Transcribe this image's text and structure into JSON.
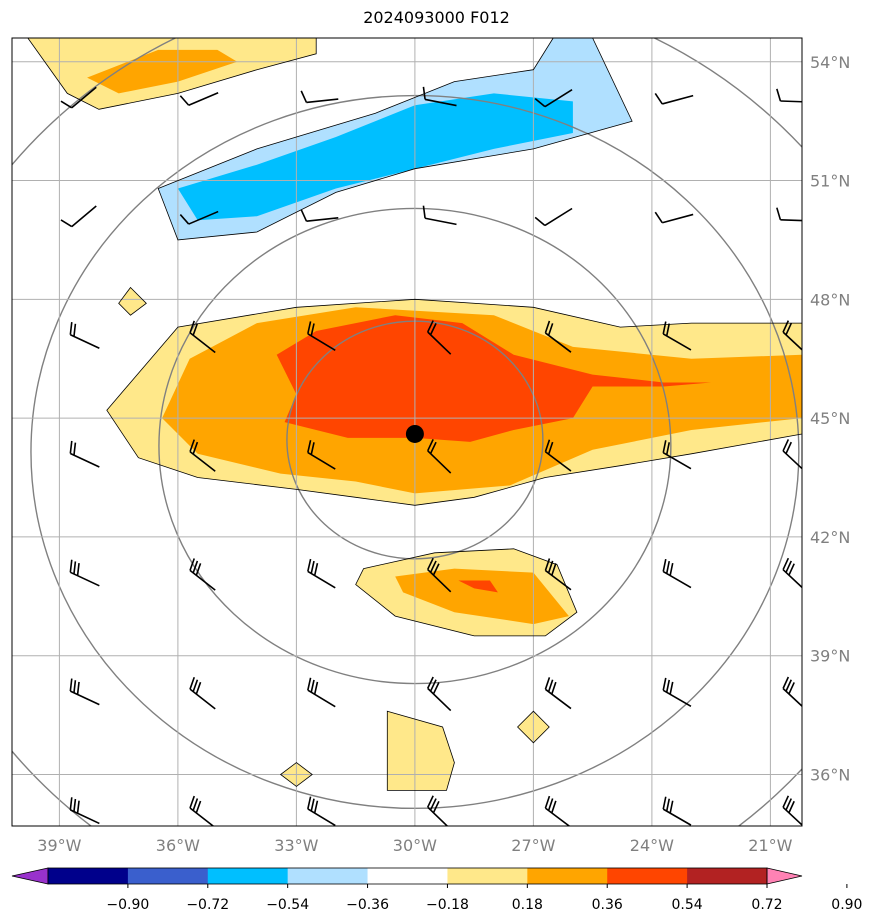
{
  "chart_data": {
    "type": "heatmap",
    "title": "2024093000 F012",
    "map": {
      "lon_range": [
        -40.2,
        -20.2
      ],
      "lat_range": [
        34.7,
        54.6
      ],
      "lon_ticks": [
        -39,
        -36,
        -33,
        -30,
        -27,
        -24,
        -21
      ],
      "lon_tick_labels": [
        "39°W",
        "36°W",
        "33°W",
        "30°W",
        "27°W",
        "24°W",
        "21°W"
      ],
      "lat_ticks": [
        36,
        39,
        42,
        45,
        48,
        51,
        54
      ],
      "lat_tick_labels": [
        "36°N",
        "39°N",
        "42°N",
        "45°N",
        "48°N",
        "51°N",
        "54°N"
      ],
      "grid": true,
      "center_marker": {
        "lon": -30.0,
        "lat": 44.6
      },
      "range_rings_deg": [
        3,
        6,
        9,
        12
      ]
    },
    "colorbar": {
      "ticks": [
        "−0.90",
        "−0.72",
        "−0.54",
        "−0.36",
        "−0.18",
        "0.18",
        "0.36",
        "0.54",
        "0.72",
        "0.90"
      ],
      "levels": [
        -0.9,
        -0.72,
        -0.54,
        -0.36,
        -0.18,
        0.18,
        0.36,
        0.54,
        0.72,
        0.9
      ],
      "colors": [
        "#9932cc",
        "#00008b",
        "#3a5fcd",
        "#00bfff",
        "#b0e0ff",
        "#ffffff",
        "#ffe88a",
        "#ffa500",
        "#ff4500",
        "#b22222",
        "#ff82b4"
      ],
      "extend": "both"
    },
    "filled_regions": [
      {
        "level": "0.18-0.36",
        "lonlat": [
          [
            -37.8,
            45.2
          ],
          [
            -36,
            47.3
          ],
          [
            -33,
            47.8
          ],
          [
            -30,
            48.0
          ],
          [
            -27,
            47.8
          ],
          [
            -24.8,
            47.3
          ],
          [
            -23,
            47.4
          ],
          [
            -20.2,
            47.4
          ],
          [
            -20.2,
            44.6
          ],
          [
            -23,
            44.1
          ],
          [
            -24.8,
            43.8
          ],
          [
            -26.7,
            43.5
          ],
          [
            -28.5,
            43.0
          ],
          [
            -30,
            42.8
          ],
          [
            -31.5,
            43.0
          ],
          [
            -33,
            43.2
          ],
          [
            -35.5,
            43.5
          ],
          [
            -37,
            44.0
          ]
        ]
      },
      {
        "level": "0.36-0.54",
        "lonlat": [
          [
            -36.4,
            45.0
          ],
          [
            -35.7,
            46.5
          ],
          [
            -34,
            47.4
          ],
          [
            -31.5,
            47.8
          ],
          [
            -28,
            47.6
          ],
          [
            -26,
            46.8
          ],
          [
            -23,
            46.5
          ],
          [
            -20.2,
            46.6
          ],
          [
            -20.2,
            45.0
          ],
          [
            -23,
            44.7
          ],
          [
            -25.5,
            44.2
          ],
          [
            -27.6,
            43.3
          ],
          [
            -30,
            43.1
          ],
          [
            -31.5,
            43.4
          ],
          [
            -33.4,
            43.6
          ],
          [
            -35.5,
            44.1
          ]
        ]
      },
      {
        "level": "0.54-0.72",
        "lonlat": [
          [
            -33.5,
            46.6
          ],
          [
            -32.5,
            47.2
          ],
          [
            -30.5,
            47.6
          ],
          [
            -28.8,
            47.4
          ],
          [
            -27.5,
            46.6
          ],
          [
            -25.5,
            46.1
          ],
          [
            -23.7,
            45.9
          ],
          [
            -22.5,
            45.9
          ],
          [
            -23.7,
            45.8
          ],
          [
            -25.5,
            45.8
          ],
          [
            -26.0,
            45.0
          ],
          [
            -27.5,
            44.7
          ],
          [
            -28.6,
            44.4
          ],
          [
            -30.0,
            44.5
          ],
          [
            -31.7,
            44.5
          ],
          [
            -33.3,
            44.9
          ],
          [
            -33.0,
            45.6
          ]
        ]
      },
      {
        "level": "-0.36--0.18",
        "lonlat": [
          [
            -36.5,
            50.8
          ],
          [
            -34,
            51.8
          ],
          [
            -31,
            52.7
          ],
          [
            -29,
            53.5
          ],
          [
            -27,
            53.8
          ],
          [
            -26.5,
            54.6
          ],
          [
            -25.5,
            54.6
          ],
          [
            -24.5,
            52.5
          ],
          [
            -27,
            51.8
          ],
          [
            -30,
            51.3
          ],
          [
            -32,
            50.7
          ],
          [
            -34,
            49.7
          ],
          [
            -36,
            49.5
          ]
        ]
      },
      {
        "level": "-0.54--0.36",
        "lonlat": [
          [
            -36,
            50.8
          ],
          [
            -34,
            51.4
          ],
          [
            -32,
            52.1
          ],
          [
            -30,
            52.9
          ],
          [
            -28,
            53.2
          ],
          [
            -26,
            53.0
          ],
          [
            -26.0,
            52.2
          ],
          [
            -28,
            51.8
          ],
          [
            -30,
            51.3
          ],
          [
            -32,
            50.8
          ],
          [
            -34,
            50.1
          ],
          [
            -35.5,
            50.0
          ]
        ]
      },
      {
        "level": "0.18-0.36",
        "lonlat": [
          [
            -39.8,
            54.6
          ],
          [
            -32.5,
            54.6
          ],
          [
            -32.5,
            54.2
          ],
          [
            -34,
            53.8
          ],
          [
            -36,
            53.2
          ],
          [
            -38,
            52.8
          ],
          [
            -38.8,
            53.2
          ]
        ]
      },
      {
        "level": "0.36-0.54",
        "lonlat": [
          [
            -38.3,
            53.6
          ],
          [
            -36.5,
            54.3
          ],
          [
            -35,
            54.3
          ],
          [
            -34.5,
            54.0
          ],
          [
            -36,
            53.5
          ],
          [
            -37.5,
            53.2
          ]
        ]
      },
      {
        "level": "0.18-0.36",
        "lonlat": [
          [
            -31.3,
            41.2
          ],
          [
            -29.5,
            41.6
          ],
          [
            -27.5,
            41.7
          ],
          [
            -26.4,
            41.3
          ],
          [
            -25.9,
            40.1
          ],
          [
            -26.7,
            39.5
          ],
          [
            -28.5,
            39.5
          ],
          [
            -30.5,
            40.0
          ],
          [
            -31.5,
            40.8
          ]
        ]
      },
      {
        "level": "0.36-0.54",
        "lonlat": [
          [
            -30.5,
            41.0
          ],
          [
            -29.0,
            41.2
          ],
          [
            -27.0,
            41.1
          ],
          [
            -26.1,
            40.0
          ],
          [
            -27.0,
            39.8
          ],
          [
            -29.0,
            40.1
          ],
          [
            -30.3,
            40.6
          ]
        ]
      },
      {
        "level": "0.54-0.72",
        "lonlat": [
          [
            -28.9,
            40.9
          ],
          [
            -28.1,
            40.9
          ],
          [
            -27.9,
            40.6
          ],
          [
            -28.5,
            40.7
          ]
        ]
      },
      {
        "level": "0.18-0.36",
        "lonlat": [
          [
            -30.7,
            37.6
          ],
          [
            -29.3,
            37.2
          ],
          [
            -29.0,
            36.3
          ],
          [
            -29.2,
            35.6
          ],
          [
            -30.7,
            35.6
          ],
          [
            -30.7,
            36.8
          ]
        ]
      },
      {
        "level": "0.18-0.36",
        "lonlat": [
          [
            -37.2,
            48.3
          ],
          [
            -36.8,
            47.9
          ],
          [
            -37.2,
            47.6
          ],
          [
            -37.5,
            47.9
          ]
        ]
      },
      {
        "level": "0.18-0.36",
        "lonlat": [
          [
            -33.0,
            36.3
          ],
          [
            -32.6,
            36.0
          ],
          [
            -33.0,
            35.7
          ],
          [
            -33.4,
            36.0
          ]
        ]
      },
      {
        "level": "0.18-0.36",
        "lonlat": [
          [
            -27.0,
            37.6
          ],
          [
            -26.6,
            37.2
          ],
          [
            -27.0,
            36.8
          ],
          [
            -27.4,
            37.2
          ]
        ]
      }
    ],
    "wind_barbs_grid": {
      "lons": [
        -39,
        -36,
        -33,
        -30,
        -27,
        -24,
        -21
      ],
      "lats": [
        35,
        38,
        41,
        44,
        47,
        50,
        53
      ]
    }
  }
}
